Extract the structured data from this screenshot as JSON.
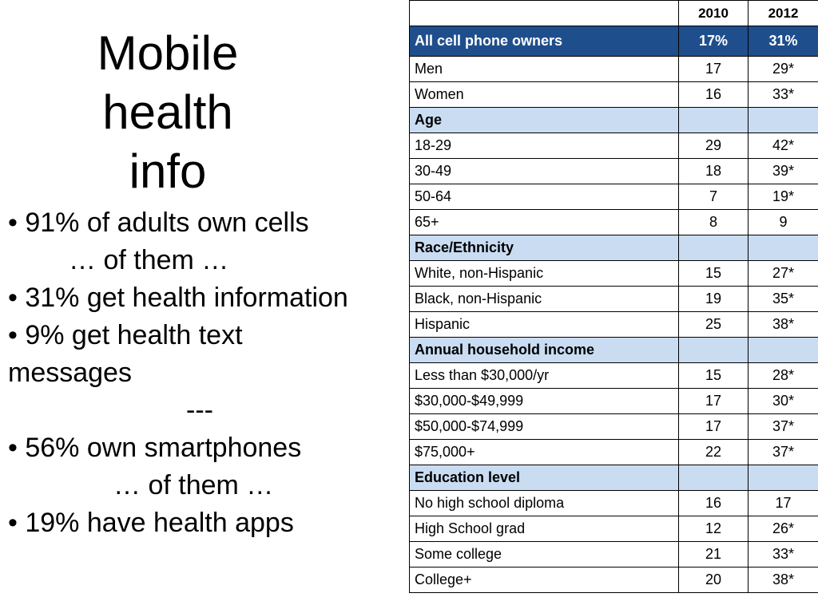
{
  "title": {
    "line1": "Mobile",
    "line2": "health",
    "line3": "info"
  },
  "bullets": {
    "b1": "• 91% of adults own cells",
    "b1_sub": "… of them …",
    "b2": "• 31% get health information",
    "b3_line1": "• 9% get health text",
    "b3_line2": "messages",
    "divider": "---",
    "b4": "•  56% own smartphones",
    "b4_sub": "… of them …",
    "b5": "• 19% have health apps"
  },
  "table": {
    "header": {
      "label": "",
      "col1": "2010",
      "col2": "2012"
    },
    "total": {
      "label": "All cell phone owners",
      "v2010": "17%",
      "v2012": "31%"
    },
    "rows": [
      {
        "label": "Men",
        "v2010": "17",
        "v2012": "29*"
      },
      {
        "label": "Women",
        "v2010": "16",
        "v2012": "33*"
      },
      {
        "label": "Age",
        "v2010": "",
        "v2012": ""
      },
      {
        "label": "18-29",
        "v2010": "29",
        "v2012": "42*"
      },
      {
        "label": "30-49",
        "v2010": "18",
        "v2012": "39*"
      },
      {
        "label": "50-64",
        "v2010": "7",
        "v2012": "19*"
      },
      {
        "label": "65+",
        "v2010": "8",
        "v2012": "9"
      },
      {
        "label": "Race/Ethnicity",
        "v2010": "",
        "v2012": ""
      },
      {
        "label": "White, non-Hispanic",
        "v2010": "15",
        "v2012": "27*"
      },
      {
        "label": "Black, non-Hispanic",
        "v2010": "19",
        "v2012": "35*"
      },
      {
        "label": "Hispanic",
        "v2010": "25",
        "v2012": "38*"
      },
      {
        "label": "Annual household income",
        "v2010": "",
        "v2012": ""
      },
      {
        "label": "Less than $30,000/yr",
        "v2010": "15",
        "v2012": "28*"
      },
      {
        "label": "$30,000-$49,999",
        "v2010": "17",
        "v2012": "30*"
      },
      {
        "label": "$50,000-$74,999",
        "v2010": "17",
        "v2012": "37*"
      },
      {
        "label": "$75,000+",
        "v2010": "22",
        "v2012": "37*"
      },
      {
        "label": "Education level",
        "v2010": "",
        "v2012": ""
      },
      {
        "label": "No high school diploma",
        "v2010": "16",
        "v2012": "17"
      },
      {
        "label": "High School grad",
        "v2010": "12",
        "v2012": "26*"
      },
      {
        "label": "Some college",
        "v2010": "21",
        "v2012": "33*"
      },
      {
        "label": "College+",
        "v2010": "20",
        "v2012": "38*"
      }
    ]
  },
  "colors": {
    "total_row_bg": "#1f4e8c",
    "section_row_bg": "#c9dcf2"
  }
}
